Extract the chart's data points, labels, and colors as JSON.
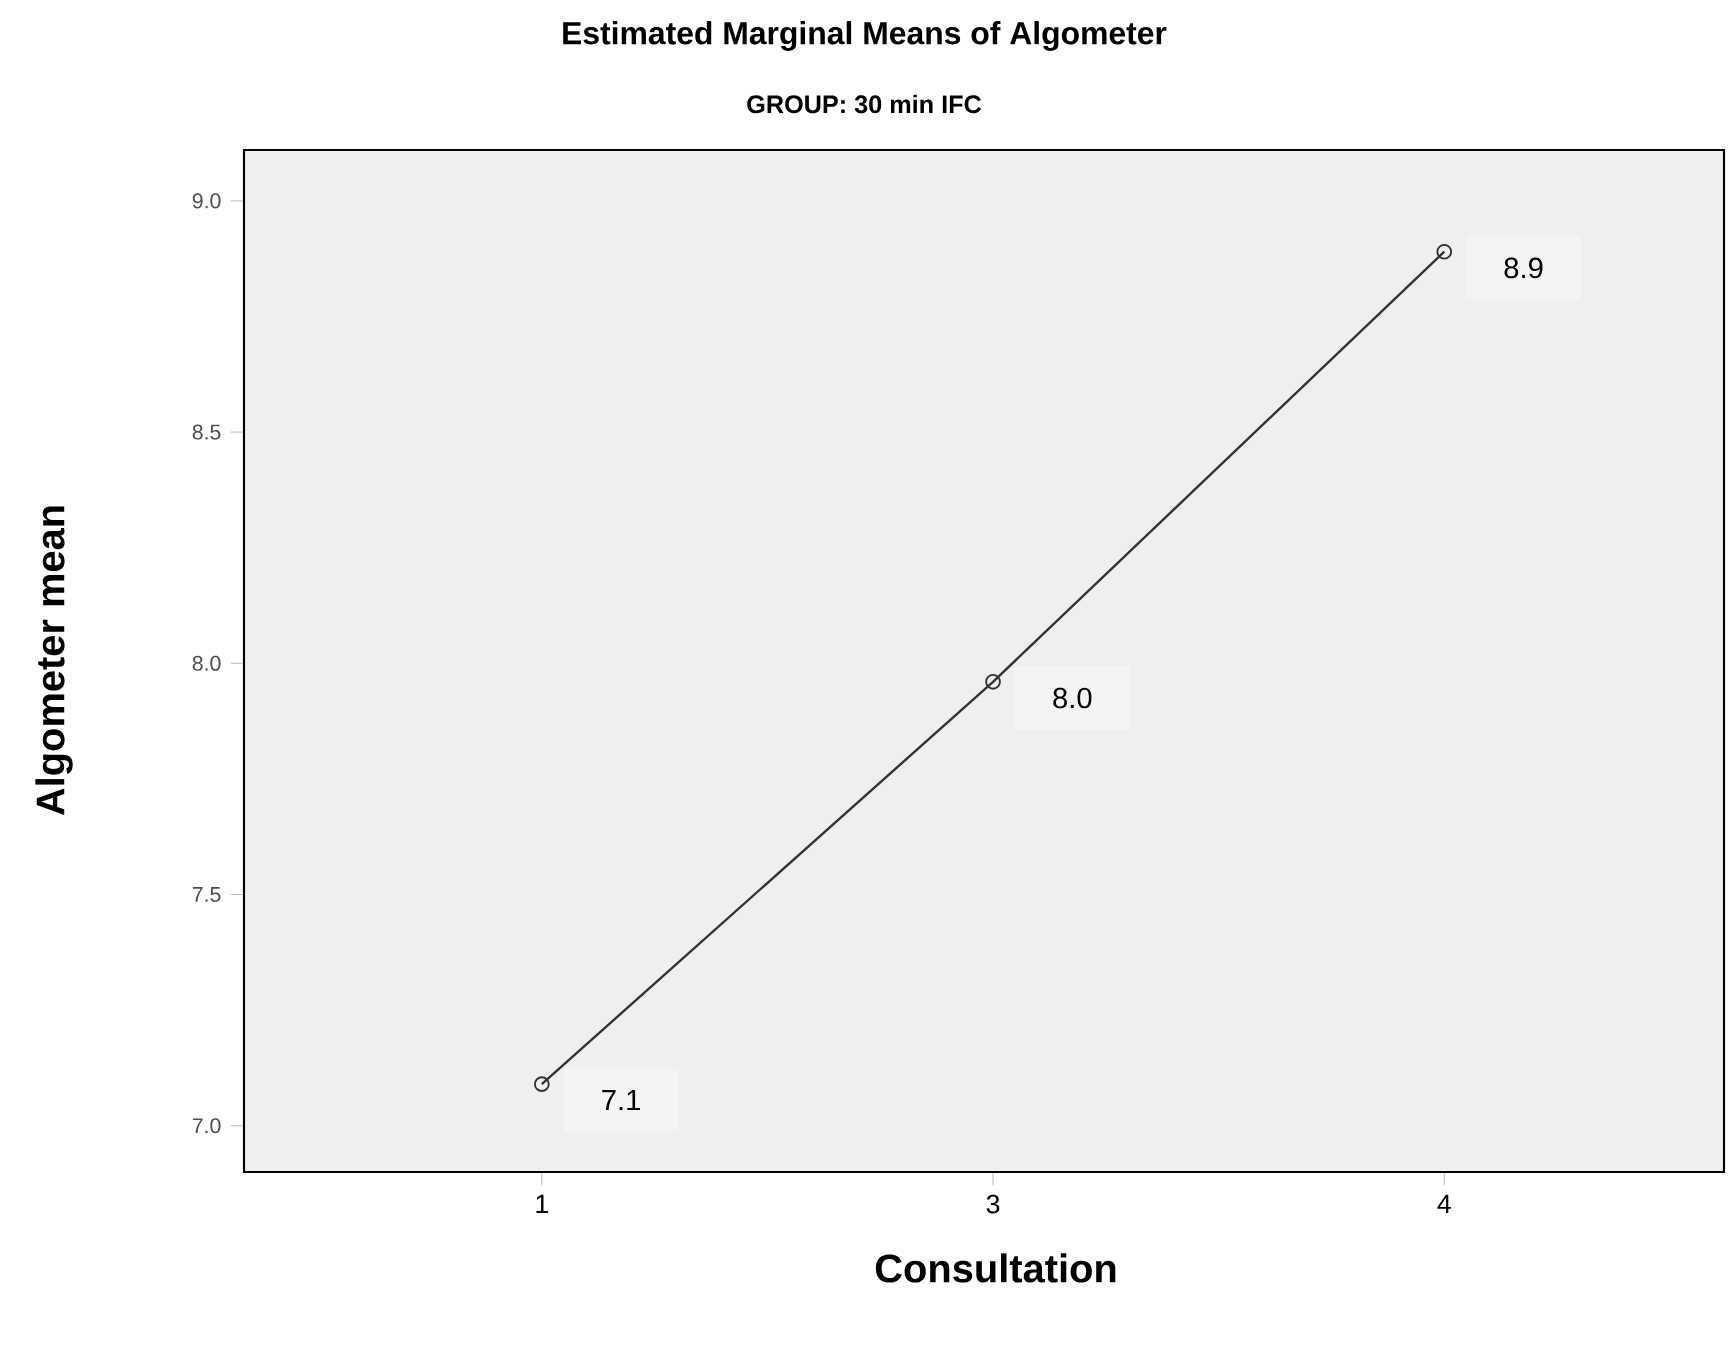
{
  "chart_data": {
    "type": "line",
    "title": "Estimated Marginal Means of Algometer",
    "subtitle": "GROUP: 30 min IFC",
    "xlabel": "Consultation",
    "ylabel": "Algometer mean",
    "categories": [
      "1",
      "3",
      "4"
    ],
    "values": [
      7.09,
      7.96,
      8.89
    ],
    "value_labels": [
      "7.1",
      "8.0",
      "8.9"
    ],
    "color": "#333333",
    "marker": "circle",
    "ylim": [
      6.9,
      9.11
    ],
    "yticks": [
      {
        "value": 7.0,
        "label": "7.0"
      },
      {
        "value": 7.5,
        "label": "7.5"
      },
      {
        "value": 8.0,
        "label": "8.0"
      },
      {
        "value": 8.5,
        "label": "8.5"
      },
      {
        "value": 9.0,
        "label": "9.0"
      }
    ]
  }
}
